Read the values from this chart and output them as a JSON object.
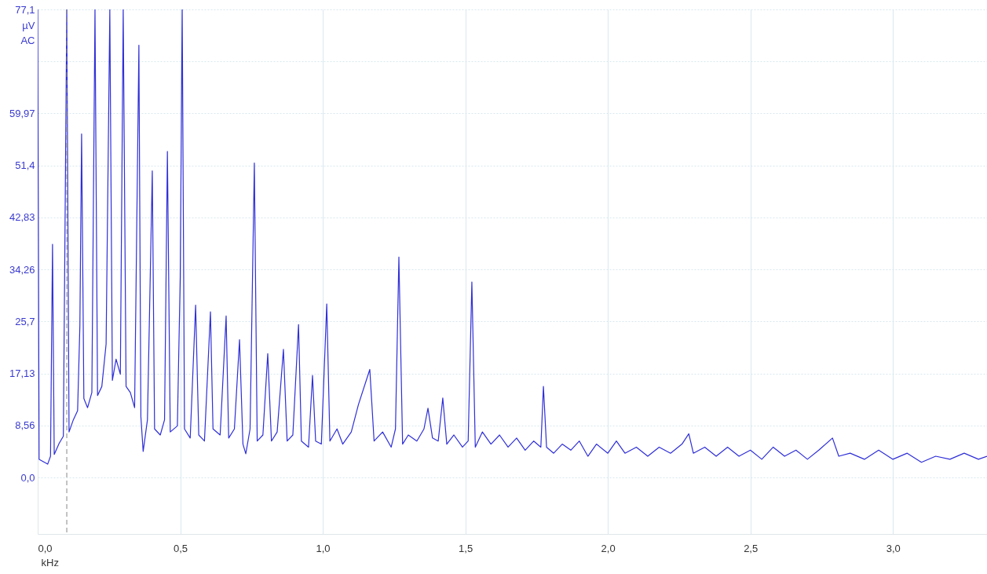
{
  "chart_data": {
    "type": "line",
    "xlabel": "kHz",
    "ylabel": "µV\nAC",
    "xlim": [
      0,
      3.33
    ],
    "ylim": [
      -9.3,
      77.1
    ],
    "xticks": [
      {
        "value": 0,
        "label": "0,0"
      },
      {
        "value": 0.5,
        "label": "0,5"
      },
      {
        "value": 1,
        "label": "1,0"
      },
      {
        "value": 1.5,
        "label": "1,5"
      },
      {
        "value": 2,
        "label": "2,0"
      },
      {
        "value": 2.5,
        "label": "2,5"
      },
      {
        "value": 3,
        "label": "3,0"
      }
    ],
    "yticks": [
      {
        "value": 0,
        "label": "0,0"
      },
      {
        "value": 8.56,
        "label": "8,56"
      },
      {
        "value": 17.13,
        "label": "17,13"
      },
      {
        "value": 25.7,
        "label": "25,7"
      },
      {
        "value": 34.26,
        "label": "34,26"
      },
      {
        "value": 42.83,
        "label": "42,83"
      },
      {
        "value": 51.4,
        "label": "51,4"
      },
      {
        "value": 59.97,
        "label": "59,97"
      },
      {
        "value": 68.53,
        "label": null
      },
      {
        "value": 77.1,
        "label": "77,1"
      }
    ],
    "grid": true,
    "marker": "none",
    "line_style": "solid",
    "ref_lines": [
      {
        "axis": "x",
        "value": 0.102,
        "color": "#888888",
        "line_style": "dashed"
      }
    ],
    "series": [
      {
        "color": "#2f2fd8",
        "x": [
          0,
          0.005,
          0.02,
          0.035,
          0.045,
          0.052,
          0.058,
          0.075,
          0.09,
          0.102,
          0.11,
          0.125,
          0.14,
          0.148,
          0.154,
          0.162,
          0.175,
          0.19,
          0.201,
          0.21,
          0.225,
          0.24,
          0.253,
          0.262,
          0.275,
          0.29,
          0.3,
          0.31,
          0.325,
          0.34,
          0.355,
          0.362,
          0.37,
          0.385,
          0.402,
          0.41,
          0.43,
          0.445,
          0.455,
          0.465,
          0.49,
          0.5,
          0.507,
          0.515,
          0.535,
          0.554,
          0.565,
          0.585,
          0.606,
          0.615,
          0.64,
          0.661,
          0.67,
          0.69,
          0.708,
          0.72,
          0.73,
          0.745,
          0.76,
          0.77,
          0.79,
          0.807,
          0.82,
          0.84,
          0.862,
          0.875,
          0.895,
          0.915,
          0.925,
          0.95,
          0.964,
          0.975,
          0.995,
          1.014,
          1.025,
          1.05,
          1.07,
          1.1,
          1.125,
          1.165,
          1.18,
          1.21,
          1.24,
          1.255,
          1.267,
          1.28,
          1.3,
          1.33,
          1.355,
          1.369,
          1.385,
          1.405,
          1.421,
          1.435,
          1.46,
          1.49,
          1.51,
          1.523,
          1.535,
          1.56,
          1.59,
          1.62,
          1.65,
          1.68,
          1.71,
          1.74,
          1.765,
          1.774,
          1.785,
          1.81,
          1.84,
          1.87,
          1.9,
          1.93,
          1.96,
          2,
          2.03,
          2.06,
          2.1,
          2.14,
          2.18,
          2.22,
          2.26,
          2.284,
          2.3,
          2.34,
          2.38,
          2.42,
          2.46,
          2.5,
          2.54,
          2.58,
          2.62,
          2.66,
          2.7,
          2.74,
          2.788,
          2.81,
          2.85,
          2.9,
          2.95,
          3,
          3.05,
          3.1,
          3.15,
          3.2,
          3.25,
          3.3,
          3.33
        ],
        "values": [
          77.1,
          3.0,
          2.6,
          2.2,
          3.5,
          38.4,
          3.8,
          5.6,
          6.8,
          77.1,
          7.5,
          9.5,
          11.0,
          25.0,
          56.6,
          13.0,
          11.5,
          14.0,
          77.1,
          13.5,
          15.0,
          22.0,
          77.1,
          16.0,
          19.5,
          17.0,
          77.1,
          15.0,
          14.0,
          11.5,
          71.2,
          10.0,
          4.3,
          9.5,
          50.5,
          8.0,
          7.0,
          9.5,
          53.7,
          7.5,
          8.5,
          33.0,
          77.1,
          8.0,
          6.5,
          28.4,
          7.0,
          6.0,
          27.3,
          8.0,
          7.0,
          26.6,
          6.5,
          8.0,
          22.7,
          5.5,
          3.9,
          8.0,
          51.8,
          6.0,
          7.0,
          20.4,
          6.0,
          7.5,
          21.1,
          6.0,
          7.0,
          25.2,
          6.0,
          5.0,
          16.8,
          6.0,
          5.5,
          28.6,
          6.0,
          8.0,
          5.5,
          7.5,
          12.0,
          17.8,
          6.0,
          7.5,
          5.0,
          8.0,
          36.3,
          5.5,
          7.0,
          6.0,
          8.0,
          11.4,
          6.5,
          6.0,
          13.1,
          5.5,
          7.0,
          5.0,
          6.0,
          32.2,
          5.0,
          7.5,
          5.5,
          7.0,
          5.0,
          6.5,
          4.5,
          6.0,
          5.0,
          15.0,
          5.0,
          4.0,
          5.5,
          4.5,
          6.0,
          3.5,
          5.5,
          4.0,
          6.0,
          4.0,
          5.0,
          3.5,
          5.0,
          4.0,
          5.5,
          7.2,
          4.0,
          5.0,
          3.5,
          5.0,
          3.5,
          4.5,
          3.0,
          5.0,
          3.5,
          4.5,
          3.0,
          4.5,
          6.5,
          3.5,
          4.0,
          3.0,
          4.5,
          3.0,
          4.0,
          2.5,
          3.5,
          3.0,
          4.0,
          3.0,
          3.5
        ]
      }
    ]
  }
}
